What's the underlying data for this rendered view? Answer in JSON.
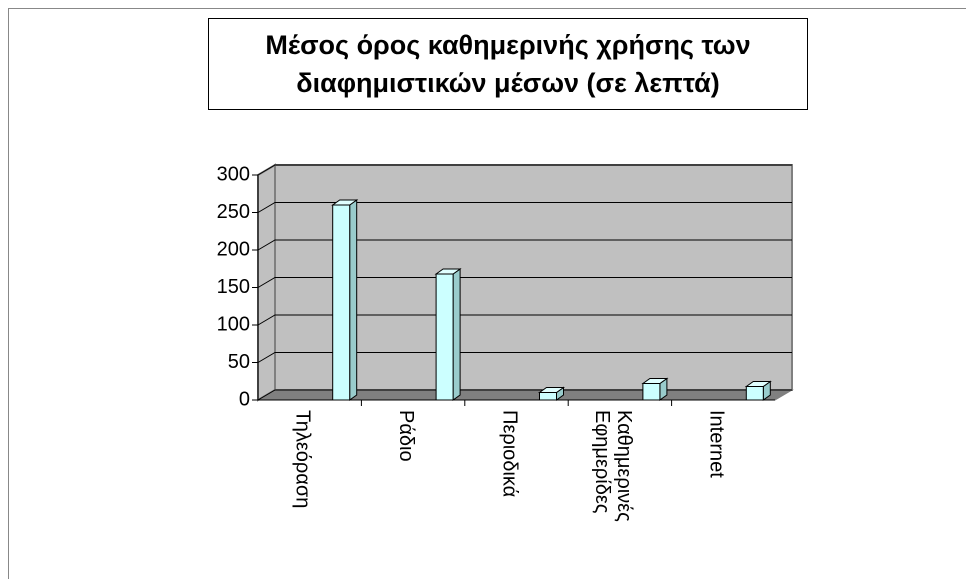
{
  "chart_data": {
    "type": "bar",
    "title": "Μέσος όρος καθημερινής χρήσης των διαφημιστικών μέσων (σε λεπτά)",
    "categories": [
      "Τηλεόραση",
      "Ράδιο",
      "Περιοδικά",
      "Καθημερινές Εφημερίδες",
      "Internet"
    ],
    "values": [
      260,
      168,
      10,
      22,
      18
    ],
    "color": "#ccffff",
    "ylim": [
      0,
      300
    ],
    "yticks": [
      0,
      50,
      100,
      150,
      200,
      250,
      300
    ],
    "grid": true
  }
}
